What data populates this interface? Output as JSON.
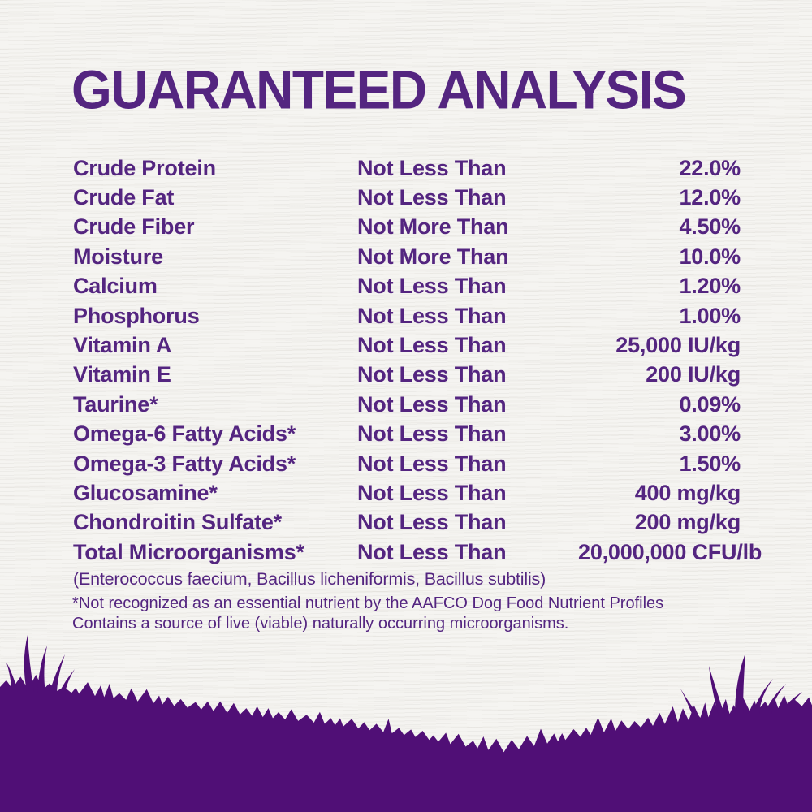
{
  "title": "GUARANTEED ANALYSIS",
  "colors": {
    "text_purple": "#542580",
    "grass_purple": "#500f76",
    "background": "#f5f4f1"
  },
  "table": {
    "rows": [
      {
        "nutrient": "Crude Protein",
        "condition": "Not Less Than",
        "value": "22.0%"
      },
      {
        "nutrient": "Crude Fat",
        "condition": "Not Less Than",
        "value": "12.0%"
      },
      {
        "nutrient": "Crude Fiber",
        "condition": "Not More Than",
        "value": "4.50%"
      },
      {
        "nutrient": "Moisture",
        "condition": "Not More Than",
        "value": "10.0%"
      },
      {
        "nutrient": "Calcium",
        "condition": "Not Less Than",
        "value": "1.20%"
      },
      {
        "nutrient": "Phosphorus",
        "condition": "Not Less Than",
        "value": "1.00%"
      },
      {
        "nutrient": "Vitamin A",
        "condition": "Not Less Than",
        "value": "25,000 IU/kg"
      },
      {
        "nutrient": "Vitamin E",
        "condition": "Not Less Than",
        "value": "200 IU/kg"
      },
      {
        "nutrient": "Taurine*",
        "condition": "Not Less Than",
        "value": "0.09%"
      },
      {
        "nutrient": "Omega-6 Fatty Acids*",
        "condition": "Not Less Than",
        "value": "3.00%"
      },
      {
        "nutrient": "Omega-3 Fatty Acids*",
        "condition": "Not Less Than",
        "value": "1.50%"
      },
      {
        "nutrient": "Glucosamine*",
        "condition": "Not Less Than",
        "value": "400 mg/kg"
      },
      {
        "nutrient": "Chondroitin Sulfate*",
        "condition": "Not Less Than",
        "value": "200 mg/kg"
      },
      {
        "nutrient": "Total Microorganisms*",
        "condition": "Not Less Than",
        "value": "20,000,000 CFU/lb"
      }
    ],
    "species_note": "(Enterococcus faecium, Bacillus licheniformis, Bacillus subtilis)"
  },
  "footnotes": {
    "line1": "*Not recognized as an essential nutrient by the AAFCO Dog Food Nutrient Profiles",
    "line2": "Contains a source of live (viable) naturally occurring microorganisms."
  }
}
